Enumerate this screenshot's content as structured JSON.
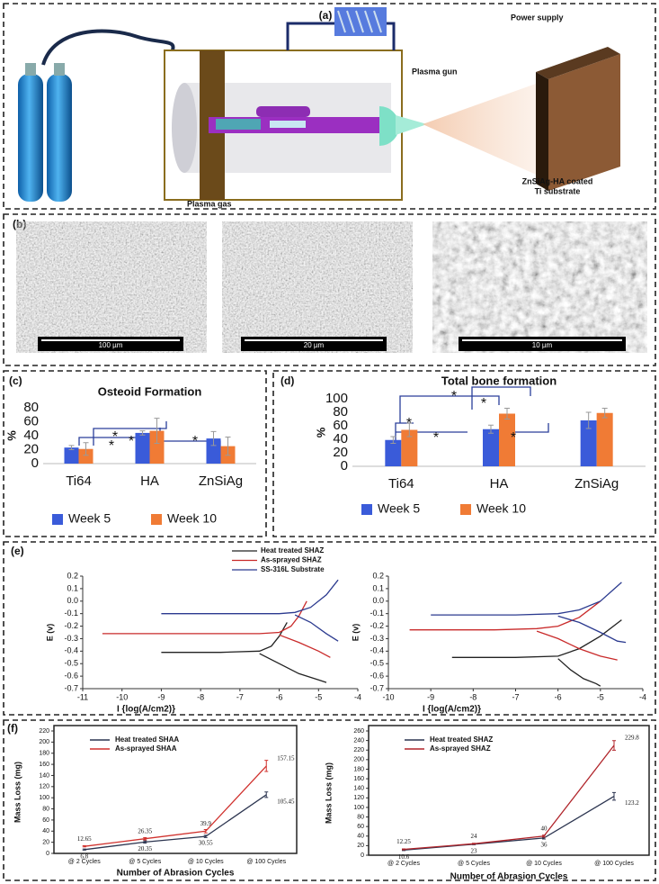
{
  "panels": {
    "a": {
      "label": "(a)",
      "power_supply": "Power supply",
      "plasma_gun": "Plasma gun",
      "plasma_gas": "Plasma gas",
      "substrate": [
        "ZnSiAg-HA coated",
        "Ti substrate"
      ]
    },
    "b": {
      "label": "(b)",
      "scale_bars": [
        "100 µm",
        "20 µm",
        "10 µm"
      ]
    }
  },
  "chart_data": [
    {
      "panel": "(c)",
      "type": "bar",
      "title": "Osteoid Formation",
      "ylabel": "%",
      "categories": [
        "Ti64",
        "HA",
        "ZnSiAg"
      ],
      "series": [
        {
          "name": "Week 5",
          "color": "#3a5bd9",
          "values": [
            23,
            44,
            36
          ],
          "errors": [
            3,
            3,
            10
          ]
        },
        {
          "name": "Week 10",
          "color": "#f07b35",
          "values": [
            21,
            47,
            25
          ],
          "errors": [
            9,
            18,
            13
          ]
        }
      ],
      "ylim": [
        0,
        80
      ],
      "yticks": [
        0,
        20,
        40,
        60,
        80
      ],
      "grid": false,
      "legend": "bottom",
      "annotations": [
        "*",
        "*",
        "*",
        "*"
      ]
    },
    {
      "panel": "(d)",
      "type": "bar",
      "title": "Total bone formation",
      "ylabel": "%",
      "categories": [
        "Ti64",
        "HA",
        "ZnSiAg"
      ],
      "series": [
        {
          "name": "Week 5",
          "color": "#3a5bd9",
          "values": [
            39,
            55,
            68
          ],
          "errors": [
            5,
            6,
            12
          ]
        },
        {
          "name": "Week 10",
          "color": "#f07b35",
          "values": [
            54,
            78,
            79
          ],
          "errors": [
            10,
            8,
            7
          ]
        }
      ],
      "ylim": [
        0,
        100
      ],
      "yticks": [
        0,
        20,
        40,
        60,
        80,
        100
      ],
      "grid": false,
      "legend": "bottom",
      "annotations": [
        "*",
        "*",
        "*",
        "*",
        "*"
      ]
    },
    {
      "panel": "(e)",
      "type": "line",
      "xlabel": "I {log(A/cm2)}",
      "ylabel": "E (v)",
      "xlim": [
        -11,
        -4
      ],
      "xticks": [
        -11,
        -10,
        -9,
        -8,
        -7,
        -6,
        -5,
        -4
      ],
      "ylim": [
        -0.7,
        0.2
      ],
      "yticks": [
        -0.7,
        -0.6,
        -0.5,
        -0.4,
        -0.3,
        -0.2,
        -0.1,
        {
          "value": 0,
          "label": "0.0"
        },
        0.1,
        0.2
      ],
      "grid": false,
      "legend": "top",
      "series": [
        {
          "name": "Heat treated SHAZ",
          "color": "#222222",
          "x": [
            -9,
            -7.5,
            -6.5,
            -6.2,
            -6,
            -5.8,
            null,
            -6.5,
            -6,
            -5.5,
            -5,
            -4.8
          ],
          "values": [
            -0.41,
            -0.41,
            -0.4,
            -0.36,
            -0.28,
            -0.17,
            null,
            -0.42,
            -0.5,
            -0.58,
            -0.63,
            -0.65
          ]
        },
        {
          "name": "As-sprayed SHAZ",
          "color": "#c92a2a",
          "x": [
            -10.5,
            -8,
            -6.5,
            -6,
            -5.7,
            -5.5,
            -5.3,
            null,
            -6,
            -5.5,
            -5,
            -4.7
          ],
          "values": [
            -0.26,
            -0.26,
            -0.26,
            -0.25,
            -0.2,
            -0.12,
            0,
            null,
            -0.27,
            -0.33,
            -0.4,
            -0.45
          ]
        },
        {
          "name": "SS-316L Substrate",
          "color": "#2b3a8f",
          "x": [
            -9,
            -7,
            -6,
            -5.6,
            -5.2,
            -4.8,
            -4.5,
            null,
            -5.6,
            -5.2,
            -4.8,
            -4.5
          ],
          "values": [
            -0.1,
            -0.1,
            -0.1,
            -0.09,
            -0.05,
            0.05,
            0.17,
            null,
            -0.11,
            -0.17,
            -0.26,
            -0.32
          ]
        }
      ]
    },
    {
      "type": "line",
      "xlabel": "I {log(A/cm2)}",
      "ylabel": "E (v)",
      "xlim": [
        -10,
        -4
      ],
      "xticks": [
        -10,
        -9,
        -8,
        -7,
        -6,
        -5,
        -4
      ],
      "ylim": [
        -0.7,
        0.2
      ],
      "yticks": [
        -0.7,
        -0.6,
        -0.5,
        -0.4,
        -0.3,
        -0.2,
        -0.1,
        {
          "value": 0,
          "label": "0.0"
        },
        0.1,
        0.2
      ],
      "grid": false,
      "series": [
        {
          "color": "#222222",
          "x": [
            -8.5,
            -7,
            -6,
            -5.5,
            -5,
            -4.5,
            null,
            -6,
            -5.7,
            -5.4,
            -5.1,
            -5
          ],
          "values": [
            -0.45,
            -0.45,
            -0.44,
            -0.38,
            -0.28,
            -0.15,
            null,
            -0.46,
            -0.55,
            -0.62,
            -0.66,
            -0.68
          ]
        },
        {
          "color": "#c92a2a",
          "x": [
            -9.5,
            -7.5,
            -6.5,
            -6,
            -5.5,
            -5,
            null,
            -6.5,
            -6,
            -5.5,
            -5,
            -4.6
          ],
          "values": [
            -0.23,
            -0.23,
            -0.22,
            -0.2,
            -0.13,
            0,
            null,
            -0.24,
            -0.3,
            -0.38,
            -0.44,
            -0.47
          ]
        },
        {
          "color": "#2b3a8f",
          "x": [
            -9,
            -7,
            -6,
            -5.5,
            -5,
            -4.5,
            null,
            -6,
            -5.5,
            -5,
            -4.6,
            -4.4
          ],
          "values": [
            -0.11,
            -0.11,
            -0.1,
            -0.07,
            0,
            0.15,
            null,
            -0.12,
            -0.17,
            -0.25,
            -0.32,
            -0.33
          ]
        }
      ]
    },
    {
      "panel": "(f)",
      "type": "line",
      "xlabel": "Number of Abrasion Cycles",
      "ylabel": "Mass Loss (mg)",
      "categories": [
        "@ 2 Cycles",
        "@ 5 Cycles",
        "@ 10 Cycles",
        "@ 100 Cycles"
      ],
      "series": [
        {
          "name": "Heat treated SHAA",
          "color": "#2c3550",
          "values": [
            6.8,
            20.35,
            30.55,
            105.45
          ],
          "errors": [
            1,
            2,
            2,
            5
          ]
        },
        {
          "name": "As-sprayed SHAA",
          "color": "#d0312d",
          "values": [
            12.65,
            26.35,
            39.9,
            157.15
          ],
          "errors": [
            1,
            2,
            3,
            10
          ]
        }
      ],
      "ylim": [
        0,
        220
      ],
      "yticks": [
        0,
        20,
        40,
        60,
        80,
        100,
        120,
        140,
        160,
        180,
        200,
        220
      ],
      "grid": false,
      "legend": "top-left",
      "data_labels": true
    },
    {
      "type": "line",
      "xlabel": "Number of Abrasion Cycles",
      "ylabel": "Mass Loss (mg)",
      "categories": [
        "@ 2 Cycles",
        "@ 5 Cycles",
        "@ 10 Cycles",
        "@ 100 Cycles"
      ],
      "series": [
        {
          "name": "Heat treated SHAZ",
          "color": "#2c3550",
          "values": [
            10.6,
            23,
            36,
            123.2
          ],
          "errors": [
            1,
            1,
            2,
            8
          ]
        },
        {
          "name": "As-sprayed SHAZ",
          "color": "#b0242a",
          "values": [
            12.25,
            24,
            40,
            229.8
          ],
          "errors": [
            1,
            1,
            2,
            10
          ]
        }
      ],
      "ylim": [
        0,
        260
      ],
      "yticks": [
        0,
        20,
        40,
        60,
        80,
        100,
        120,
        140,
        160,
        180,
        200,
        220,
        240,
        260
      ],
      "grid": false,
      "legend": "top-left",
      "data_labels": true
    }
  ]
}
